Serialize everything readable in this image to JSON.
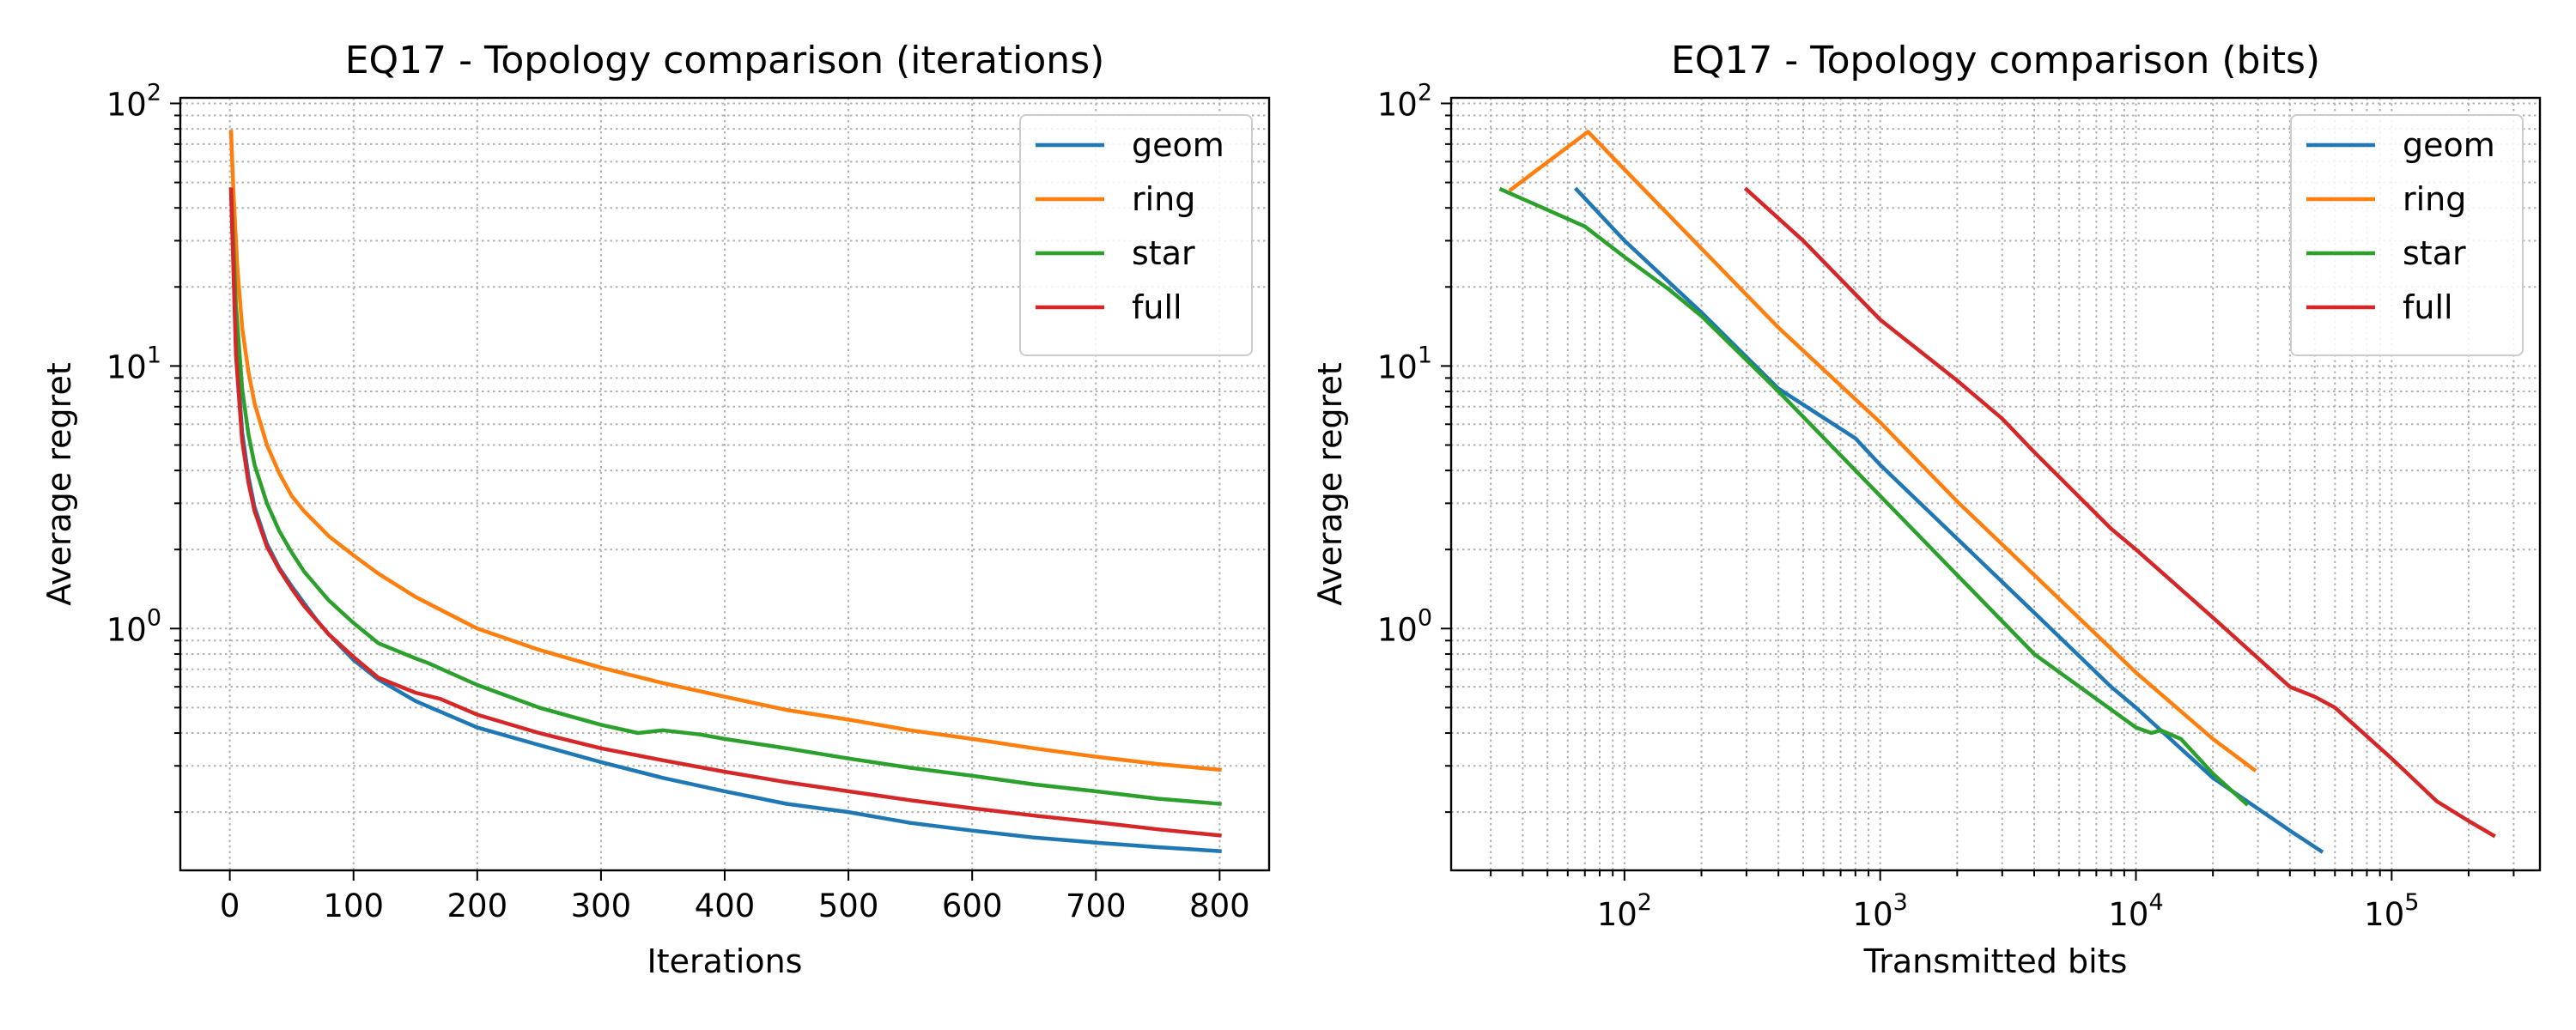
{
  "chart_data": [
    {
      "type": "line",
      "title": "EQ17 - Topology comparison (iterations)",
      "xlabel": "Iterations",
      "ylabel": "Average regret",
      "xscale": "linear",
      "yscale": "log",
      "xlim": [
        -40,
        840
      ],
      "ylim": [
        0.12,
        105
      ],
      "xticks": [
        0,
        100,
        200,
        300,
        400,
        500,
        600,
        700,
        800
      ],
      "xtick_labels": [
        "0",
        "100",
        "200",
        "300",
        "400",
        "500",
        "600",
        "700",
        "800"
      ],
      "yticks": [
        1,
        10,
        100
      ],
      "ytick_labels": [
        {
          "base": "10",
          "exp": "0"
        },
        {
          "base": "10",
          "exp": "1"
        },
        {
          "base": "10",
          "exp": "2"
        }
      ],
      "grid": true,
      "legend": "top-right",
      "series": [
        {
          "name": "geom",
          "color": "#1f77b4",
          "x": [
            1,
            5,
            10,
            15,
            20,
            30,
            40,
            50,
            60,
            70,
            80,
            100,
            120,
            150,
            200,
            250,
            300,
            350,
            400,
            450,
            500,
            550,
            600,
            650,
            700,
            750,
            800
          ],
          "y": [
            47,
            12,
            5.6,
            3.8,
            2.9,
            2.1,
            1.7,
            1.45,
            1.25,
            1.08,
            0.95,
            0.76,
            0.64,
            0.53,
            0.42,
            0.36,
            0.31,
            0.27,
            0.24,
            0.215,
            0.2,
            0.182,
            0.17,
            0.16,
            0.153,
            0.147,
            0.142
          ]
        },
        {
          "name": "ring",
          "color": "#ff7f0e",
          "x": [
            1,
            3,
            6,
            10,
            15,
            20,
            30,
            40,
            50,
            60,
            80,
            100,
            120,
            150,
            200,
            250,
            300,
            350,
            400,
            450,
            500,
            550,
            600,
            650,
            700,
            750,
            800
          ],
          "y": [
            78,
            45,
            24,
            14,
            9.5,
            7.2,
            5.0,
            3.9,
            3.2,
            2.8,
            2.25,
            1.9,
            1.62,
            1.32,
            1.0,
            0.83,
            0.71,
            0.62,
            0.55,
            0.49,
            0.45,
            0.41,
            0.38,
            0.35,
            0.325,
            0.305,
            0.29
          ]
        },
        {
          "name": "star",
          "color": "#2ca02c",
          "x": [
            1,
            5,
            10,
            15,
            20,
            30,
            40,
            50,
            60,
            80,
            100,
            120,
            150,
            160,
            200,
            250,
            300,
            330,
            350,
            380,
            400,
            450,
            500,
            550,
            600,
            650,
            700,
            750,
            800
          ],
          "y": [
            47,
            17,
            8.2,
            5.5,
            4.2,
            3.0,
            2.35,
            1.95,
            1.65,
            1.28,
            1.05,
            0.88,
            0.77,
            0.74,
            0.61,
            0.5,
            0.43,
            0.4,
            0.41,
            0.395,
            0.38,
            0.35,
            0.32,
            0.295,
            0.275,
            0.255,
            0.24,
            0.225,
            0.215
          ]
        },
        {
          "name": "full",
          "color": "#d62728",
          "x": [
            1,
            5,
            10,
            15,
            20,
            30,
            40,
            50,
            60,
            80,
            100,
            120,
            150,
            170,
            200,
            250,
            300,
            350,
            400,
            450,
            500,
            550,
            600,
            650,
            700,
            750,
            800
          ],
          "y": [
            47,
            11,
            5.2,
            3.6,
            2.8,
            2.05,
            1.68,
            1.42,
            1.22,
            0.95,
            0.78,
            0.65,
            0.57,
            0.54,
            0.47,
            0.4,
            0.35,
            0.315,
            0.285,
            0.26,
            0.24,
            0.222,
            0.207,
            0.194,
            0.183,
            0.172,
            0.163
          ]
        }
      ]
    },
    {
      "type": "line",
      "title": "EQ17 - Topology comparison (bits)",
      "xlabel": "Transmitted bits",
      "ylabel": "Average regret",
      "xscale": "log",
      "yscale": "log",
      "xlim": [
        21,
        380000
      ],
      "ylim": [
        0.12,
        105
      ],
      "xticks": [
        100,
        1000,
        10000,
        100000
      ],
      "xtick_labels": [
        {
          "base": "10",
          "exp": "2"
        },
        {
          "base": "10",
          "exp": "3"
        },
        {
          "base": "10",
          "exp": "4"
        },
        {
          "base": "10",
          "exp": "5"
        }
      ],
      "yticks": [
        1,
        10,
        100
      ],
      "ytick_labels": [
        {
          "base": "10",
          "exp": "0"
        },
        {
          "base": "10",
          "exp": "1"
        },
        {
          "base": "10",
          "exp": "2"
        }
      ],
      "grid": true,
      "legend": "top-right",
      "series": [
        {
          "name": "geom",
          "color": "#1f77b4",
          "x": [
            65,
            100,
            200,
            400,
            800,
            1000,
            2000,
            4000,
            8000,
            10000,
            20000,
            40000,
            53000
          ],
          "y": [
            47,
            30,
            16,
            8.2,
            5.3,
            4.2,
            2.2,
            1.15,
            0.6,
            0.5,
            0.27,
            0.17,
            0.142
          ]
        },
        {
          "name": "ring",
          "color": "#ff7f0e",
          "x": [
            36,
            72,
            100,
            200,
            400,
            1000,
            2000,
            4000,
            10000,
            20000,
            29000
          ],
          "y": [
            47,
            78,
            56,
            28,
            14,
            6.1,
            3.05,
            1.6,
            0.68,
            0.38,
            0.29
          ]
        },
        {
          "name": "star",
          "color": "#2ca02c",
          "x": [
            33,
            70,
            100,
            150,
            200,
            400,
            1000,
            2000,
            4000,
            10000,
            11500,
            12500,
            15000,
            20000,
            27000
          ],
          "y": [
            47,
            34,
            26,
            19.5,
            15.5,
            8.0,
            3.2,
            1.6,
            0.8,
            0.42,
            0.4,
            0.41,
            0.38,
            0.28,
            0.215
          ]
        },
        {
          "name": "full",
          "color": "#d62728",
          "x": [
            300,
            500,
            1000,
            2000,
            3000,
            4000,
            8000,
            10000,
            20000,
            40000,
            50000,
            60000,
            100000,
            150000,
            200000,
            250000
          ],
          "y": [
            47,
            30,
            15,
            8.8,
            6.3,
            4.7,
            2.4,
            2.0,
            1.1,
            0.6,
            0.55,
            0.5,
            0.32,
            0.22,
            0.185,
            0.163
          ]
        }
      ]
    }
  ]
}
